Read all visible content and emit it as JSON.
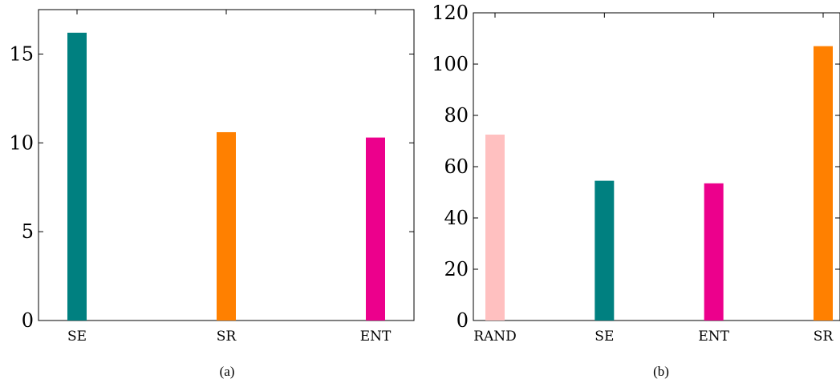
{
  "chart_data": [
    {
      "type": "bar",
      "caption": "(a)",
      "categories": [
        "SE",
        "SR",
        "ENT"
      ],
      "values": [
        16.2,
        10.6,
        10.3
      ],
      "colors": [
        "#008080",
        "#ff8000",
        "#ec008c"
      ],
      "ylim": [
        0,
        17.5
      ],
      "yticks": [
        0,
        5,
        10,
        15
      ],
      "title": "",
      "xlabel": "",
      "ylabel": "",
      "grid": false
    },
    {
      "type": "bar",
      "caption": "(b)",
      "categories": [
        "RAND",
        "SE",
        "ENT",
        "SR"
      ],
      "values": [
        72.5,
        54.5,
        53.5,
        107
      ],
      "colors": [
        "#ffc0c0",
        "#008080",
        "#ec008c",
        "#ff8000"
      ],
      "ylim": [
        0,
        120
      ],
      "yticks": [
        0,
        20,
        40,
        60,
        80,
        100,
        120
      ],
      "title": "",
      "xlabel": "",
      "ylabel": "",
      "grid": false
    }
  ]
}
